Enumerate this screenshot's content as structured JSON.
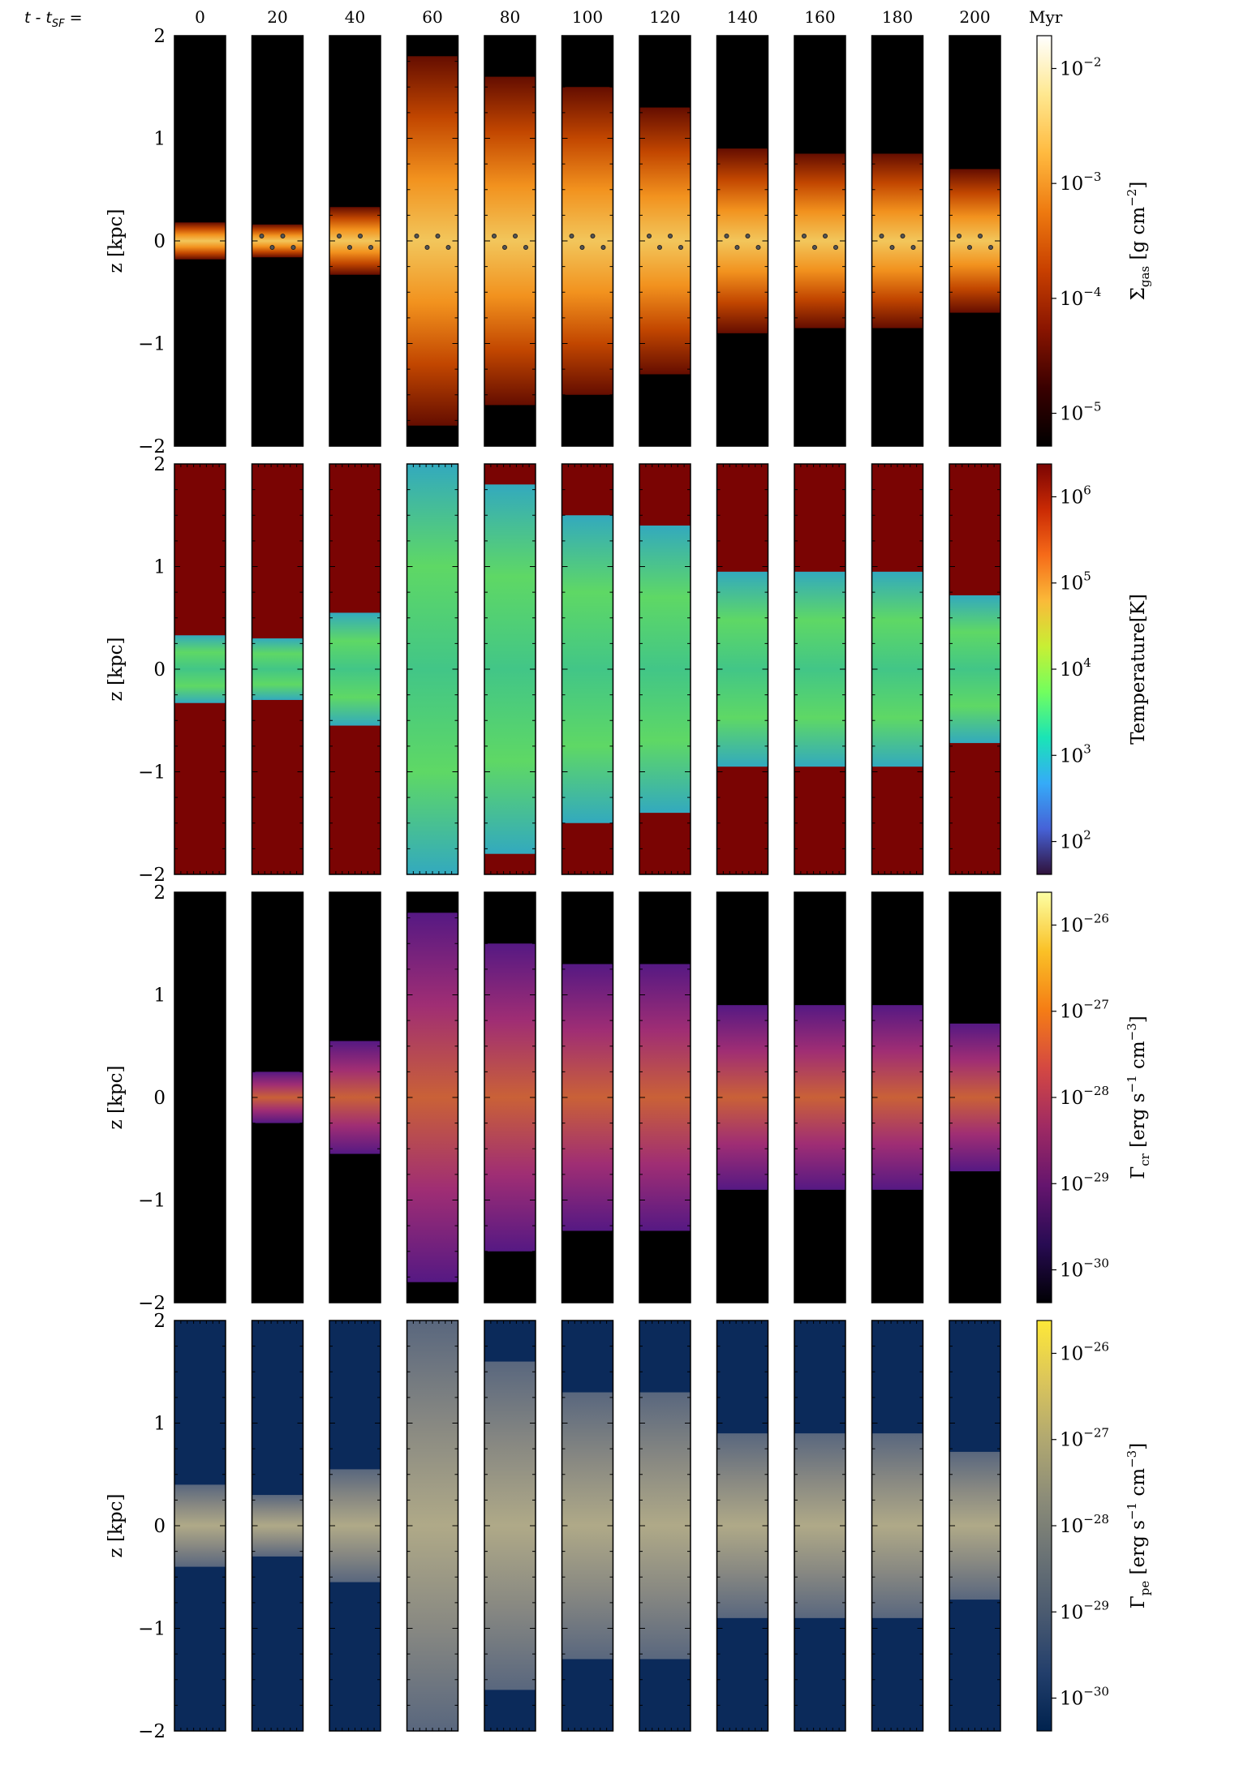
{
  "header": {
    "time_prefix": "t - t",
    "time_prefix_sub": "SF",
    "time_prefix_tail": " =",
    "times": [
      "0",
      "20",
      "40",
      "60",
      "80",
      "100",
      "120",
      "140",
      "160",
      "180",
      "200"
    ],
    "unit": "Myr"
  },
  "axes": {
    "ylabel": "z [kpc]",
    "ytick_labels": [
      "2",
      "1",
      "0",
      "−1",
      "−2"
    ]
  },
  "rows": [
    {
      "id": "gas",
      "colorbar": {
        "label_main": "Σ",
        "label_sub": "gas",
        "label_rest": " [g cm",
        "label_sup": "−2",
        "label_end": "]",
        "tick_base": "10",
        "ticks": [
          "−2",
          "−3",
          "−4",
          "−5"
        ],
        "colors": [
          "#000000",
          "#3a0000",
          "#8a1500",
          "#c84000",
          "#ee7a10",
          "#ffba40",
          "#ffe890",
          "#ffffff"
        ]
      },
      "panel_bg": "#000000",
      "disk_colors": [
        "#ffd060",
        "#ff9a20",
        "#cc4a00",
        "#6a0e00"
      ]
    },
    {
      "id": "temp",
      "colorbar": {
        "label_main": "Temperature[K]",
        "tick_base": "10",
        "ticks": [
          "6",
          "5",
          "4",
          "3",
          "2"
        ],
        "colors": [
          "#30123b",
          "#4662d7",
          "#35abf8",
          "#1ae4b6",
          "#72fe5e",
          "#c8ef34",
          "#faba39",
          "#f66b19",
          "#ca2a04",
          "#7a0403"
        ]
      },
      "panel_bg": "#7a0403",
      "disk_colors": [
        "#3fd08e",
        "#5de36a",
        "#2fb2c8"
      ]
    },
    {
      "id": "cr",
      "colorbar": {
        "label_main": "Γ",
        "label_sub": "cr",
        "label_rest": " [erg s",
        "label_sup": "−1",
        "label_mid": " cm",
        "label_sup2": "−3",
        "label_end": "]",
        "tick_base": "10",
        "ticks": [
          "−26",
          "−27",
          "−28",
          "−29",
          "−30"
        ],
        "colors": [
          "#000004",
          "#280b53",
          "#65156e",
          "#9f2a63",
          "#d44842",
          "#f57d15",
          "#fac127",
          "#fcffa4"
        ]
      },
      "panel_bg": "#000000",
      "disk_colors": [
        "#d4663a",
        "#a8307a",
        "#5a1a8a"
      ]
    },
    {
      "id": "pe",
      "colorbar": {
        "label_main": "Γ",
        "label_sub": "pe",
        "label_rest": " [erg s",
        "label_sup": "−1",
        "label_mid": " cm",
        "label_sup2": "−3",
        "label_end": "]",
        "tick_base": "10",
        "ticks": [
          "−26",
          "−27",
          "−28",
          "−29",
          "−30"
        ],
        "colors": [
          "#00224e",
          "#233f6c",
          "#4a5a70",
          "#6b7375",
          "#8d8d78",
          "#b2a970",
          "#dcc65a",
          "#fee838"
        ]
      },
      "panel_bg": "#0b2a5a",
      "disk_colors": [
        "#b8b08a",
        "#8e8d84",
        "#5d6a80"
      ]
    }
  ],
  "panel_shapes": {
    "half_heights": [
      [
        0.18,
        0.16,
        0.33,
        1.8,
        1.6,
        1.5,
        1.3,
        0.9,
        0.85,
        0.85,
        0.7
      ],
      [
        0.33,
        0.3,
        0.55,
        2.0,
        1.8,
        1.5,
        1.4,
        0.95,
        0.95,
        0.95,
        0.72
      ],
      [
        0.0,
        0.25,
        0.55,
        1.8,
        1.5,
        1.3,
        1.3,
        0.9,
        0.9,
        0.9,
        0.72
      ],
      [
        0.4,
        0.3,
        0.55,
        2.0,
        1.6,
        1.3,
        1.3,
        0.9,
        0.9,
        0.9,
        0.72
      ]
    ]
  }
}
